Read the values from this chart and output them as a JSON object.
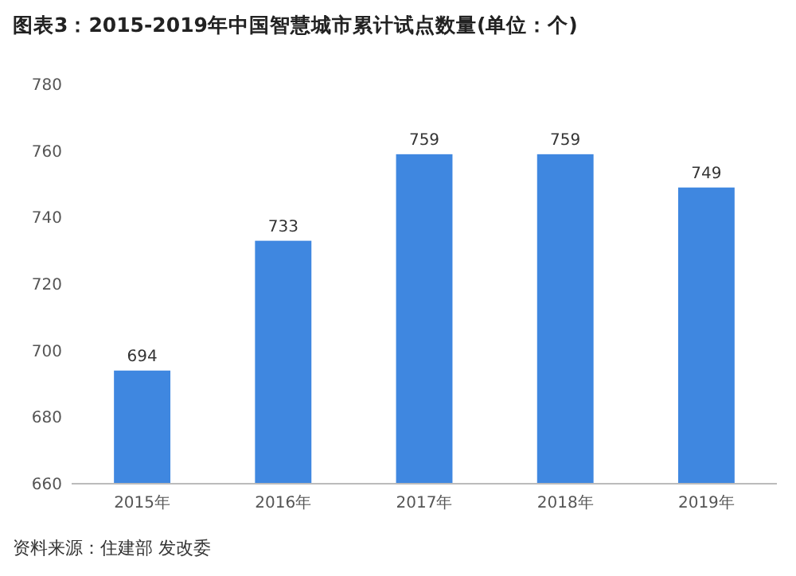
{
  "chart_data": {
    "type": "bar",
    "title": "图表3：2015-2019年中国智慧城市累计试点数量(单位：个)",
    "categories": [
      "2015年",
      "2016年",
      "2017年",
      "2018年",
      "2019年"
    ],
    "values": [
      694,
      733,
      759,
      759,
      749
    ],
    "color": "#3f87e0",
    "ylim": [
      660,
      780
    ],
    "yticks": [
      660,
      680,
      700,
      720,
      740,
      760,
      780
    ],
    "grid": false,
    "data_labels": true,
    "annotations": [
      "资料来源：住建部 发改委"
    ]
  }
}
